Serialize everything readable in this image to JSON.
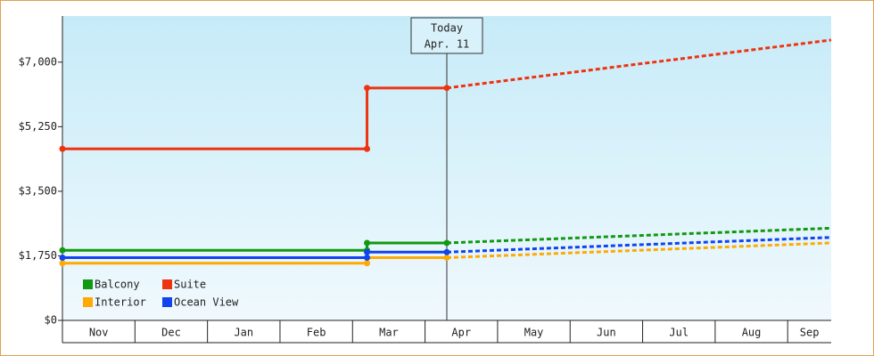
{
  "chart_data": {
    "type": "line",
    "categories": [
      "Nov",
      "Dec",
      "Jan",
      "Feb",
      "Mar",
      "Apr",
      "May",
      "Jun",
      "Jul",
      "Aug",
      "Sep"
    ],
    "xlim": [
      0,
      10.6
    ],
    "ylim": [
      0,
      8250
    ],
    "yticks": [
      {
        "value": 0,
        "label": "$0"
      },
      {
        "value": 1750,
        "label": "$1,750"
      },
      {
        "value": 3500,
        "label": "$3,500"
      },
      {
        "value": 5250,
        "label": "$5,250"
      },
      {
        "value": 7000,
        "label": "$7,000"
      }
    ],
    "today": {
      "x": 5.3,
      "label": [
        "Today",
        "Apr. 11"
      ]
    },
    "series": [
      {
        "name": "Balcony",
        "color": "#119911",
        "x": [
          0,
          4.2,
          4.2,
          5.3
        ],
        "values": [
          1900,
          1900,
          2100,
          2100
        ],
        "forecast": {
          "x": [
            5.3,
            10.6
          ],
          "values": [
            2100,
            2500
          ]
        }
      },
      {
        "name": "Suite",
        "color": "#ee3311",
        "x": [
          0,
          4.2,
          4.2,
          5.3
        ],
        "values": [
          4650,
          4650,
          6300,
          6300
        ],
        "forecast": {
          "x": [
            5.3,
            10.6
          ],
          "values": [
            6300,
            7600
          ]
        }
      },
      {
        "name": "Interior",
        "color": "#ffaa00",
        "x": [
          0,
          4.2,
          4.2,
          5.3
        ],
        "values": [
          1550,
          1550,
          1700,
          1700
        ],
        "forecast": {
          "x": [
            5.3,
            10.6
          ],
          "values": [
            1700,
            2100
          ]
        }
      },
      {
        "name": "Ocean View",
        "color": "#1144ee",
        "x": [
          0,
          4.2,
          4.2,
          5.3
        ],
        "values": [
          1700,
          1700,
          1850,
          1850
        ],
        "forecast": {
          "x": [
            5.3,
            10.6
          ],
          "values": [
            1850,
            2250
          ]
        }
      }
    ]
  }
}
